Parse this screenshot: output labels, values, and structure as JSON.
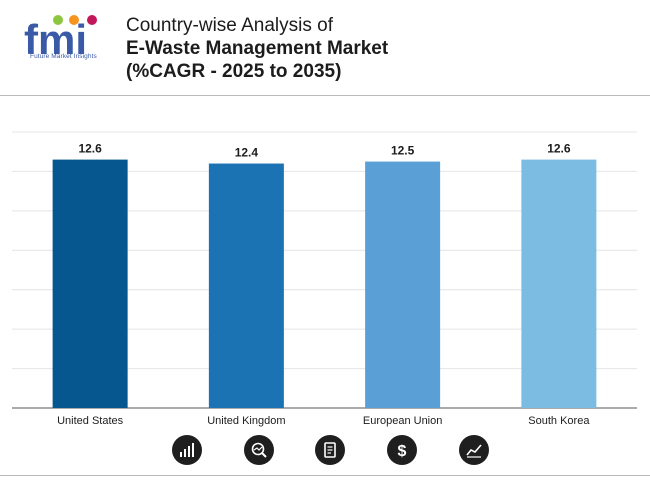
{
  "brand": {
    "logo_letters": "fmi",
    "logo_tagline": "Future Market Insights"
  },
  "header": {
    "title_line1": "Country-wise Analysis of",
    "title_line2": "E-Waste Management Market",
    "title_line3": "(%CAGR - 2025 to 2035)"
  },
  "footer_icons": [
    "bar-chart-icon",
    "magnifier-chart-icon",
    "document-icon",
    "dollar-icon",
    "trend-line-icon"
  ],
  "chart_data": {
    "type": "bar",
    "title": "Country-wise Analysis of E-Waste Management Market (%CAGR - 2025 to 2035)",
    "categories": [
      "United States",
      "United Kingdom",
      "European Union",
      "South Korea"
    ],
    "values": [
      12.6,
      12.4,
      12.5,
      12.6
    ],
    "value_labels": [
      "12.6",
      "12.4",
      "12.5",
      "12.6"
    ],
    "colors": [
      "#06578f",
      "#1c73b3",
      "#5aa0d6",
      "#7cbce2"
    ],
    "ylim": [
      0,
      14
    ],
    "grid": true,
    "xlabel": "",
    "ylabel": ""
  }
}
